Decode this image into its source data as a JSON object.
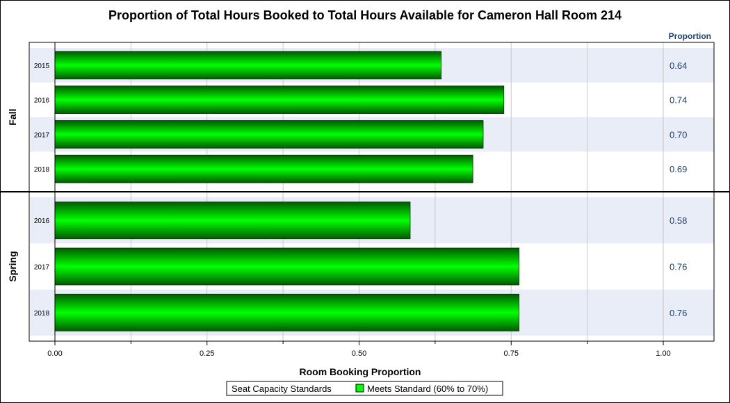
{
  "chart_data": {
    "type": "bar",
    "orientation": "horizontal",
    "title": "Proportion of Total Hours Booked to Total Hours Available for Cameron Hall Room 214",
    "xlabel": "Room Booking Proportion",
    "value_column_label": "Proportion",
    "xlim": [
      0,
      1.08
    ],
    "xticks": [
      {
        "value": 0.0,
        "label": "0.00"
      },
      {
        "value": 0.25,
        "label": "0.25"
      },
      {
        "value": 0.5,
        "label": "0.50"
      },
      {
        "value": 0.75,
        "label": "0.75"
      },
      {
        "value": 1.0,
        "label": "1.00"
      }
    ],
    "minor_xticks": [
      0.125,
      0.375,
      0.625,
      0.875
    ],
    "groups": [
      {
        "name": "Fall",
        "rows": [
          {
            "category": "2015",
            "value": 0.635,
            "label": "0.64"
          },
          {
            "category": "2016",
            "value": 0.738,
            "label": "0.74"
          },
          {
            "category": "2017",
            "value": 0.704,
            "label": "0.70"
          },
          {
            "category": "2018",
            "value": 0.687,
            "label": "0.69"
          }
        ]
      },
      {
        "name": "Spring",
        "rows": [
          {
            "category": "2016",
            "value": 0.584,
            "label": "0.58"
          },
          {
            "category": "2017",
            "value": 0.763,
            "label": "0.76"
          },
          {
            "category": "2018",
            "value": 0.763,
            "label": "0.76"
          }
        ]
      }
    ],
    "legend": {
      "title": "Seat Capacity Standards",
      "items": [
        {
          "label": "Meets Standard (60% to 70%)",
          "color": "#00ff00"
        }
      ],
      "position": "bottom-center"
    },
    "colors": {
      "bar_light": "#00ff00",
      "bar_dark": "#005a00",
      "band": "#e9edf7",
      "grid": "#c8c8c8",
      "value_text": "#1f3f6e"
    }
  }
}
